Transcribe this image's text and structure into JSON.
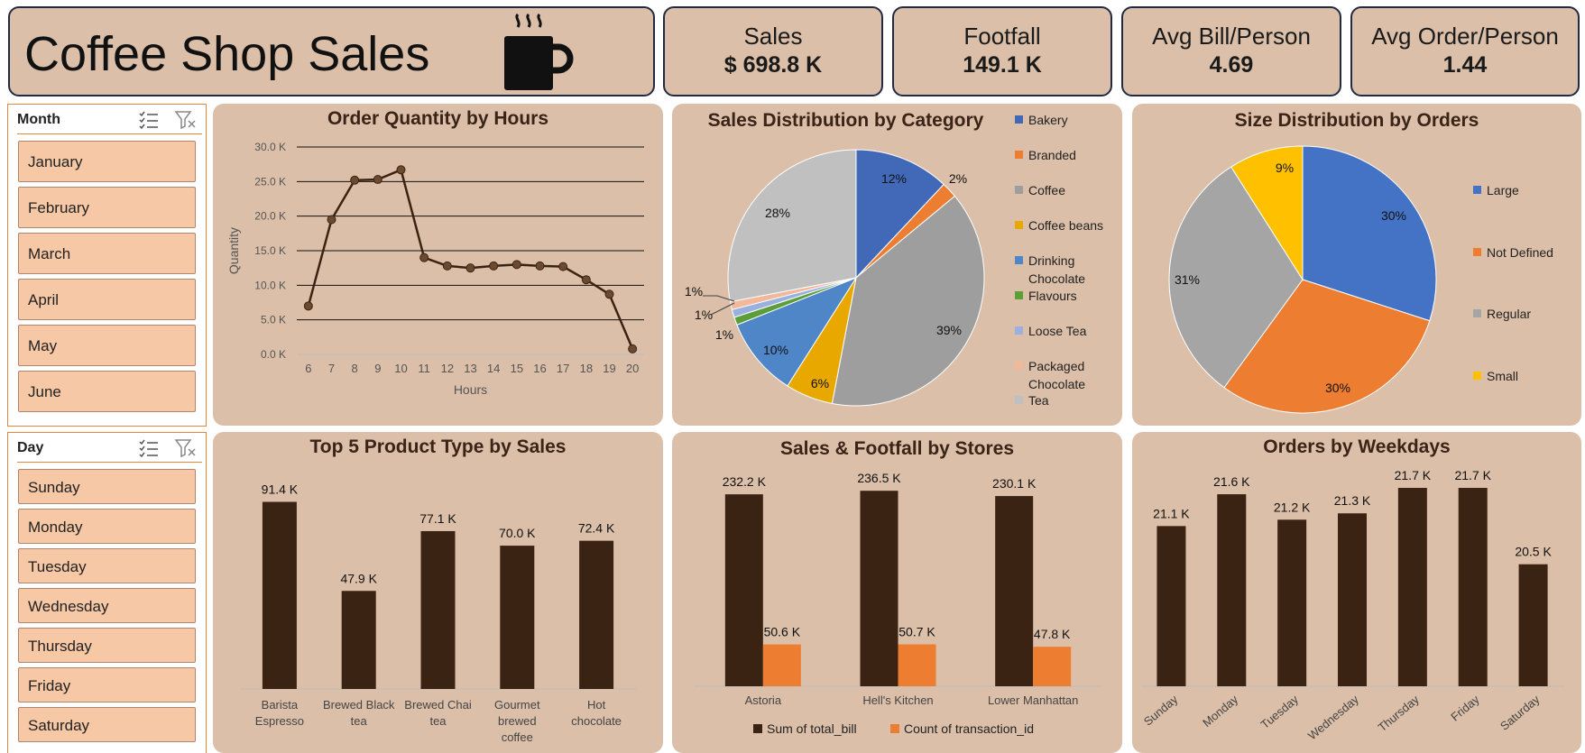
{
  "header": {
    "title": "Coffee Shop Sales",
    "icon": "coffee-mug-icon"
  },
  "kpis": [
    {
      "label": "Sales",
      "value": "$ 698.8 K"
    },
    {
      "label": "Footfall",
      "value": "149.1 K"
    },
    {
      "label": "Avg Bill/Person",
      "value": "4.69"
    },
    {
      "label": "Avg Order/Person",
      "value": "1.44"
    }
  ],
  "slicers": {
    "month": {
      "title": "Month",
      "items": [
        "January",
        "February",
        "March",
        "April",
        "May",
        "June"
      ]
    },
    "day": {
      "title": "Day",
      "items": [
        "Sunday",
        "Monday",
        "Tuesday",
        "Wednesday",
        "Thursday",
        "Friday",
        "Saturday"
      ]
    }
  },
  "colors": {
    "panel": "#dbbfa8",
    "dark": "#3b2314",
    "orange": "#ed7d31",
    "slicer_item": "#f7c8a6"
  },
  "chart_data": [
    {
      "id": "hours",
      "type": "line",
      "title": "Order Quantity by Hours",
      "xlabel": "Hours",
      "ylabel": "Quantity",
      "ylim": [
        0,
        30000
      ],
      "yticks": [
        "0.0 K",
        "5.0 K",
        "10.0 K",
        "15.0 K",
        "20.0 K",
        "25.0 K",
        "30.0 K"
      ],
      "x": [
        6,
        7,
        8,
        9,
        10,
        11,
        12,
        13,
        14,
        15,
        16,
        17,
        18,
        19,
        20
      ],
      "values": [
        7000,
        19500,
        25200,
        25300,
        26700,
        14000,
        12800,
        12500,
        12800,
        13000,
        12800,
        12700,
        10800,
        8700,
        800
      ],
      "grid": true
    },
    {
      "id": "category",
      "type": "pie",
      "title": "Sales Distribution by Category",
      "legend_position": "right",
      "categories": [
        "Bakery",
        "Branded",
        "Coffee",
        "Coffee beans",
        "Drinking Chocolate",
        "Flavours",
        "Loose Tea",
        "Packaged Chocolate",
        "Tea"
      ],
      "values": [
        12,
        2,
        39,
        6,
        10,
        1,
        1,
        1,
        28
      ],
      "labels": [
        "12%",
        "2%",
        "39%",
        "6%",
        "10%",
        "1%",
        "1%",
        "1%",
        "28%"
      ],
      "colors": [
        "#4169b8",
        "#ed7d31",
        "#9e9e9e",
        "#e8a800",
        "#4e86c8",
        "#5b9e3a",
        "#9ab1de",
        "#f2b89a",
        "#c0c0c0"
      ]
    },
    {
      "id": "size",
      "type": "pie",
      "title": "Size Distribution by Orders",
      "legend_position": "right",
      "categories": [
        "Large",
        "Not Defined",
        "Regular",
        "Small"
      ],
      "values": [
        30,
        30,
        31,
        9
      ],
      "labels": [
        "30%",
        "30%",
        "31%",
        "9%"
      ],
      "colors": [
        "#4472c4",
        "#ed7d31",
        "#a5a5a5",
        "#ffc000"
      ]
    },
    {
      "id": "products",
      "type": "bar",
      "title": "Top 5 Product Type by Sales",
      "categories": [
        "Barista Espresso",
        "Brewed Black tea",
        "Brewed Chai tea",
        "Gourmet brewed coffee",
        "Hot chocolate"
      ],
      "values": [
        91400,
        47900,
        77100,
        70000,
        72400
      ],
      "labels": [
        "91.4 K",
        "47.9 K",
        "77.1 K",
        "70.0 K",
        "72.4 K"
      ]
    },
    {
      "id": "stores",
      "type": "bar",
      "title": "Sales & Footfall by Stores",
      "categories": [
        "Astoria",
        "Hell's Kitchen",
        "Lower Manhattan"
      ],
      "legend_position": "bottom",
      "series": [
        {
          "name": "Sum of total_bill",
          "values": [
            232200,
            236500,
            230100
          ],
          "labels": [
            "232.2 K",
            "236.5 K",
            "230.1 K"
          ],
          "color": "#3b2314"
        },
        {
          "name": "Count of transaction_id",
          "values": [
            50600,
            50700,
            47800
          ],
          "labels": [
            "50.6 K",
            "50.7 K",
            "47.8 K"
          ],
          "color": "#ed7d31"
        }
      ]
    },
    {
      "id": "weekdays",
      "type": "bar",
      "title": "Orders by Weekdays",
      "categories": [
        "Sunday",
        "Monday",
        "Tuesday",
        "Wednesday",
        "Thursday",
        "Friday",
        "Saturday"
      ],
      "values": [
        21100,
        21600,
        21200,
        21300,
        21700,
        21700,
        20500
      ],
      "labels": [
        "21.1 K",
        "21.6 K",
        "21.2 K",
        "21.3 K",
        "21.7 K",
        "21.7 K",
        "20.5 K"
      ]
    }
  ]
}
